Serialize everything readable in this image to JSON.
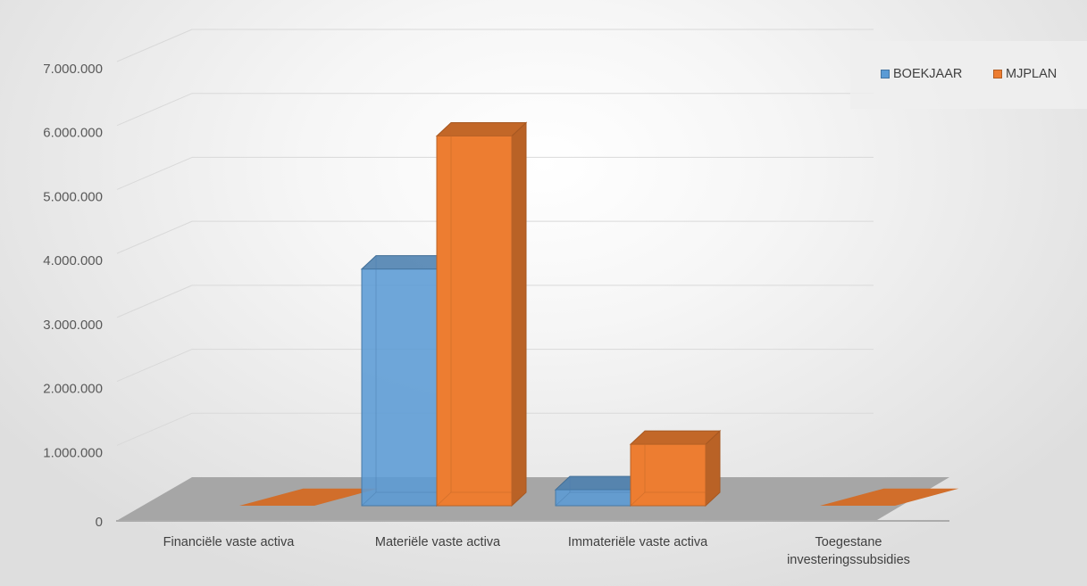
{
  "chart_data": {
    "type": "bar",
    "style": "3d-clustered-column",
    "categories": [
      [
        "Financiële vaste activa"
      ],
      [
        "Materiële vaste activa"
      ],
      [
        "Immateriële vaste activa"
      ],
      [
        "Toegestane",
        "investeringssubsidies"
      ]
    ],
    "series": [
      {
        "name": "BOEKJAAR",
        "values": [
          0,
          3700000,
          250000,
          0
        ],
        "color": "#5B9BD5"
      },
      {
        "name": "MJPLAN",
        "values": [
          0,
          5780000,
          960000,
          0
        ],
        "color": "#ED7D31"
      }
    ],
    "yticks": [
      "0",
      "1.000.000",
      "2.000.000",
      "3.000.000",
      "4.000.000",
      "5.000.000",
      "6.000.000",
      "7.000.000"
    ],
    "ylim": [
      0,
      7000000
    ],
    "grid": true,
    "legend_position": "top-right",
    "title": "",
    "xlabel": "",
    "ylabel": ""
  },
  "legend": {
    "items": [
      {
        "label": "BOEKJAAR",
        "color": "#5B9BD5"
      },
      {
        "label": "MJPLAN",
        "color": "#ED7D31"
      }
    ]
  }
}
